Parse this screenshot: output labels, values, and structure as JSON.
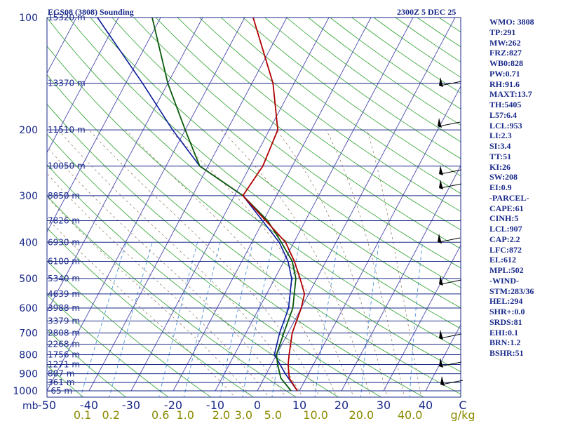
{
  "chart_data": {
    "type": "skew-t",
    "title": "EGS08 (3808) Sounding",
    "valid_time": "2300Z  5 DEC 25",
    "pressure_levels": [
      100,
      200,
      300,
      400,
      500,
      600,
      700,
      800,
      900,
      1000
    ],
    "temperature_ticks": [
      -50,
      -40,
      -30,
      -20,
      -10,
      0,
      10,
      20,
      30,
      40
    ],
    "temperature_unit_label": "C",
    "pressure_unit_label": "mb",
    "mixing_ratio_ticks": [
      "0.1",
      "0.2",
      "0.6",
      "1.0",
      "2.0",
      "3.0",
      "5.0",
      "10.0",
      "20.0",
      "40.0"
    ],
    "mixing_ratio_unit": "g/kg",
    "heights": [
      "15320 m",
      "13370 m",
      "11510 m",
      "10050 m",
      "8850 m",
      "7826 m",
      "6930 m",
      "6100 m",
      "5340 m",
      "4639 m",
      "3988 m",
      "3379 m",
      "2808 m",
      "2268 m",
      "1756 m",
      "1271 m",
      "807 m",
      "361 m",
      "-65 m"
    ],
    "temperature_profile": [
      [
        1000,
        9.5
      ],
      [
        925,
        6.0
      ],
      [
        850,
        4.0
      ],
      [
        800,
        3.0
      ],
      [
        700,
        1.0
      ],
      [
        600,
        0.0
      ],
      [
        550,
        -1.0
      ],
      [
        500,
        -4.0
      ],
      [
        450,
        -7.5
      ],
      [
        400,
        -12.0
      ],
      [
        300,
        -28.0
      ],
      [
        250,
        -27.0
      ],
      [
        200,
        -28.0
      ],
      [
        150,
        -35.0
      ],
      [
        100,
        -48.0
      ]
    ],
    "dewpoint_profile": [
      [
        1000,
        8.0
      ],
      [
        925,
        4.0
      ],
      [
        850,
        1.5
      ],
      [
        800,
        0.0
      ],
      [
        700,
        -1.0
      ],
      [
        600,
        -2.0
      ],
      [
        500,
        -5.0
      ],
      [
        450,
        -8.0
      ],
      [
        400,
        -13.0
      ],
      [
        350,
        -19.0
      ],
      [
        300,
        -28.0
      ],
      [
        250,
        -42.0
      ],
      [
        200,
        -50.0
      ],
      [
        150,
        -60.0
      ],
      [
        100,
        -72.0
      ]
    ],
    "parcel_profile": [
      [
        1000,
        9.5
      ],
      [
        900,
        4.5
      ],
      [
        800,
        -0.5
      ],
      [
        700,
        -2.0
      ],
      [
        600,
        -3.0
      ],
      [
        500,
        -6.0
      ],
      [
        450,
        -9.0
      ],
      [
        400,
        -13.5
      ],
      [
        300,
        -28.0
      ],
      [
        250,
        -42.0
      ],
      [
        200,
        -53.0
      ],
      [
        150,
        -66.0
      ],
      [
        100,
        -85.0
      ]
    ]
  },
  "indices": [
    "WMO: 3808",
    "TP:291",
    "MW:262",
    "FRZ:827",
    "WB0:828",
    "PW:0.71",
    "RH:91.6",
    "MAXT:13.7",
    "TH:5405",
    "L57:6.4",
    "LCL:953",
    "LI:2.3",
    "SI:3.4",
    "TT:51",
    "KI:26",
    "SW:208",
    "EI:0.9",
    "-PARCEL-",
    "CAPE:61",
    "CINH:5",
    "LCL:907",
    "CAP:2.2",
    "LFC:872",
    "EL:612",
    "MPL:502",
    "-WIND-",
    "STM:283/36",
    "HEL:294",
    "SHR+:0.0",
    "SRDS:81",
    "EHI:0.1",
    "BRN:1.2",
    "BSHR:51"
  ],
  "colors": {
    "background": "#ffffff",
    "isobar": "#1a2a8a",
    "isotherm": "#4a4ab0",
    "dry_adiabat": "#2aa02a",
    "moist_adiabat": "#7a5a3a",
    "mixing_ratio": "#3a8ad8",
    "temperature": "#b00000",
    "dewpoint": "#0a5a0a",
    "parcel": "#0a1a9a",
    "labels": "#1a2a8a",
    "mixing_labels": "#8a8a00"
  }
}
